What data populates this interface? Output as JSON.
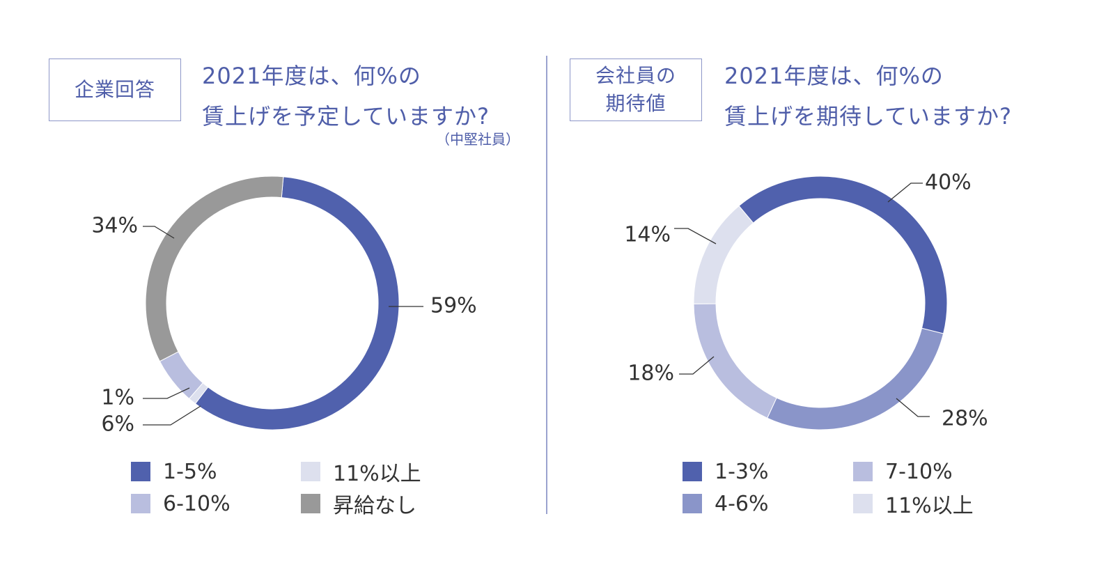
{
  "panels": [
    {
      "badge": "企業回答",
      "question": "2021年度は、何%の\n賃上げを予定していますか?",
      "note": "（中堅社員）"
    },
    {
      "badge": "会社員の\n期待値",
      "question": "2021年度は、何%の\n賃上げを期待していますか?",
      "note": ""
    }
  ],
  "chart_data": [
    {
      "type": "pie",
      "style": "donut",
      "categories": [
        "1-5%",
        "11%以上",
        "6-10%",
        "昇給なし"
      ],
      "values": [
        59,
        1,
        6,
        34
      ],
      "value_labels": [
        "59%",
        "1%",
        "6%",
        "34%"
      ],
      "colors": [
        "#5061ad",
        "#dde0ee",
        "#b9bedf",
        "#999999"
      ],
      "legend_order": [
        "1-5%",
        "11%以上",
        "6-10%",
        "昇給なし"
      ],
      "legend_colors": [
        "#5061ad",
        "#dde0ee",
        "#b9bedf",
        "#999999"
      ],
      "legend_placement": "bottom",
      "title": ""
    },
    {
      "type": "pie",
      "style": "donut",
      "categories": [
        "1-3%",
        "4-6%",
        "7-10%",
        "11%以上"
      ],
      "values": [
        40,
        28,
        18,
        14
      ],
      "value_labels": [
        "40%",
        "28%",
        "18%",
        "14%"
      ],
      "colors": [
        "#5061ad",
        "#8a95c9",
        "#b9bedf",
        "#dde0ee"
      ],
      "legend_order": [
        "1-3%",
        "7-10%",
        "4-6%",
        "11%以上"
      ],
      "legend_colors": [
        "#5061ad",
        "#b9bedf",
        "#8a95c9",
        "#dde0ee"
      ],
      "legend_placement": "bottom",
      "title": ""
    }
  ]
}
